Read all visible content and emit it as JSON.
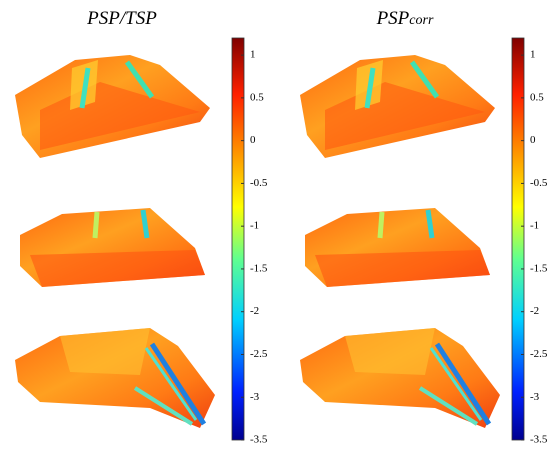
{
  "panels": [
    {
      "title": {
        "main": "PSP/TSP"
      },
      "colorbar": {
        "lim": [
          -3.5,
          1.2
        ],
        "ticks": [
          1,
          0.5,
          0,
          -0.5,
          -1,
          -1.5,
          -2,
          -2.5,
          -3,
          -3.5
        ]
      }
    },
    {
      "title": {
        "main": "PSP",
        "sub": "corr"
      },
      "colorbar": {
        "lim": [
          -3.5,
          1.2
        ],
        "ticks": [
          1,
          0.5,
          0,
          -0.5,
          -1,
          -1.5,
          -2,
          -2.5,
          -3,
          -3.5
        ]
      }
    }
  ]
}
